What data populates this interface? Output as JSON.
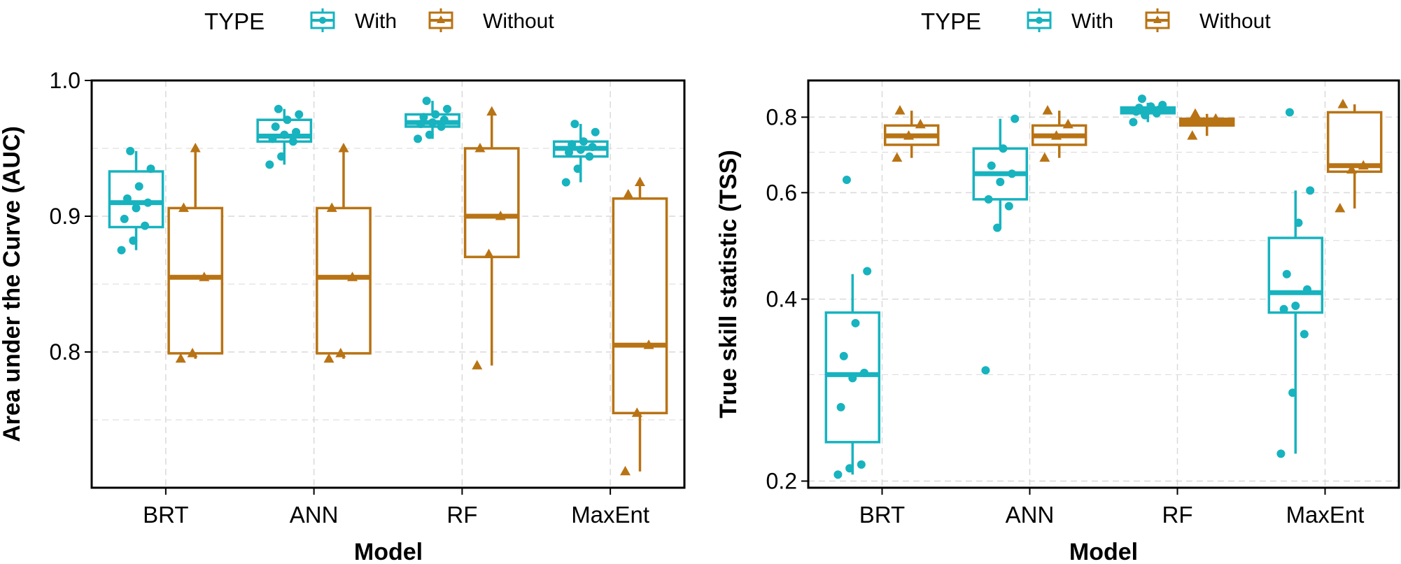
{
  "colors": {
    "with": "#17b3bf",
    "without": "#b87314",
    "grid": "#d9d9d9",
    "axis": "#000000"
  },
  "chart_data": [
    {
      "type": "box",
      "xlabel": "Model",
      "ylabel": "Area under the Curve (AUC)",
      "ylim": [
        0.7,
        1.0
      ],
      "yticks": [
        "0.8",
        "0.9",
        "1.0"
      ],
      "categories": [
        "BRT",
        "ANN",
        "RF",
        "MaxEnt"
      ],
      "legend": {
        "title": "TYPE",
        "entries": [
          "With",
          "Without"
        ],
        "position": "top"
      },
      "series": [
        {
          "name": "With",
          "boxes": [
            {
              "category": "BRT",
              "min": 0.875,
              "q1": 0.892,
              "median": 0.91,
              "q3": 0.933,
              "max": 0.948,
              "points": [
                0.875,
                0.882,
                0.893,
                0.898,
                0.906,
                0.91,
                0.913,
                0.922,
                0.935,
                0.948
              ]
            },
            {
              "category": "ANN",
              "min": 0.938,
              "q1": 0.955,
              "median": 0.959,
              "q3": 0.971,
              "max": 0.979,
              "points": [
                0.938,
                0.944,
                0.955,
                0.957,
                0.96,
                0.962,
                0.966,
                0.971,
                0.975,
                0.979
              ]
            },
            {
              "category": "RF",
              "min": 0.957,
              "q1": 0.966,
              "median": 0.969,
              "q3": 0.975,
              "max": 0.985,
              "points": [
                0.957,
                0.96,
                0.966,
                0.968,
                0.969,
                0.971,
                0.973,
                0.975,
                0.979,
                0.985
              ]
            },
            {
              "category": "MaxEnt",
              "min": 0.925,
              "q1": 0.944,
              "median": 0.95,
              "q3": 0.955,
              "max": 0.968,
              "points": [
                0.925,
                0.935,
                0.944,
                0.947,
                0.949,
                0.951,
                0.953,
                0.955,
                0.962,
                0.968
              ]
            }
          ]
        },
        {
          "name": "Without",
          "boxes": [
            {
              "category": "BRT",
              "min": 0.795,
              "q1": 0.799,
              "median": 0.855,
              "q3": 0.906,
              "max": 0.95,
              "points": [
                0.795,
                0.799,
                0.855,
                0.906,
                0.95
              ]
            },
            {
              "category": "ANN",
              "min": 0.795,
              "q1": 0.799,
              "median": 0.855,
              "q3": 0.906,
              "max": 0.95,
              "points": [
                0.795,
                0.799,
                0.855,
                0.906,
                0.95
              ]
            },
            {
              "category": "RF",
              "min": 0.79,
              "q1": 0.87,
              "median": 0.9,
              "q3": 0.95,
              "max": 0.977,
              "points": [
                0.79,
                0.872,
                0.9,
                0.95,
                0.977
              ]
            },
            {
              "category": "MaxEnt",
              "min": 0.712,
              "q1": 0.755,
              "median": 0.805,
              "q3": 0.913,
              "max": 0.925,
              "points": [
                0.712,
                0.755,
                0.805,
                0.916,
                0.925
              ]
            }
          ]
        }
      ]
    },
    {
      "type": "box",
      "xlabel": "Model",
      "ylabel": "True skill statistic (TSS)",
      "ylim": [
        0.195,
        0.92
      ],
      "yscale": "log",
      "yticks": [
        "0.2",
        "0.4",
        "0.6",
        "0.8"
      ],
      "categories": [
        "BRT",
        "ANN",
        "RF",
        "MaxEnt"
      ],
      "legend": {
        "title": "TYPE",
        "entries": [
          "With",
          "Without"
        ],
        "position": "top"
      },
      "series": [
        {
          "name": "With",
          "boxes": [
            {
              "category": "BRT",
              "min": 0.205,
              "q1": 0.232,
              "median": 0.3,
              "q3": 0.38,
              "max": 0.44,
              "points": [
                0.205,
                0.21,
                0.213,
                0.265,
                0.296,
                0.302,
                0.322,
                0.365,
                0.445,
                0.63
              ]
            },
            {
              "category": "ANN",
              "min": 0.525,
              "q1": 0.585,
              "median": 0.645,
              "q3": 0.71,
              "max": 0.795,
              "points": [
                0.305,
                0.525,
                0.57,
                0.585,
                0.625,
                0.645,
                0.665,
                0.71,
                0.795
              ]
            },
            {
              "category": "RF",
              "min": 0.785,
              "q1": 0.812,
              "median": 0.82,
              "q3": 0.83,
              "max": 0.845,
              "points": [
                0.785,
                0.806,
                0.812,
                0.817,
                0.82,
                0.824,
                0.829,
                0.833,
                0.838,
                0.858
              ]
            },
            {
              "category": "MaxEnt",
              "min": 0.222,
              "q1": 0.38,
              "median": 0.41,
              "q3": 0.505,
              "max": 0.605,
              "points": [
                0.222,
                0.28,
                0.35,
                0.385,
                0.39,
                0.415,
                0.44,
                0.535,
                0.605,
                0.815
              ]
            }
          ]
        },
        {
          "name": "Without",
          "boxes": [
            {
              "category": "BRT",
              "min": 0.685,
              "q1": 0.72,
              "median": 0.745,
              "q3": 0.775,
              "max": 0.82,
              "points": [
                0.685,
                0.745,
                0.778,
                0.82
              ]
            },
            {
              "category": "ANN",
              "min": 0.685,
              "q1": 0.72,
              "median": 0.745,
              "q3": 0.775,
              "max": 0.82,
              "points": [
                0.685,
                0.745,
                0.778,
                0.82
              ]
            },
            {
              "category": "RF",
              "min": 0.745,
              "q1": 0.775,
              "median": 0.785,
              "q3": 0.795,
              "max": 0.81,
              "points": [
                0.745,
                0.785,
                0.795,
                0.81
              ]
            },
            {
              "category": "MaxEnt",
              "min": 0.565,
              "q1": 0.65,
              "median": 0.665,
              "q3": 0.815,
              "max": 0.84,
              "points": [
                0.565,
                0.655,
                0.665,
                0.84
              ]
            }
          ]
        }
      ]
    }
  ]
}
